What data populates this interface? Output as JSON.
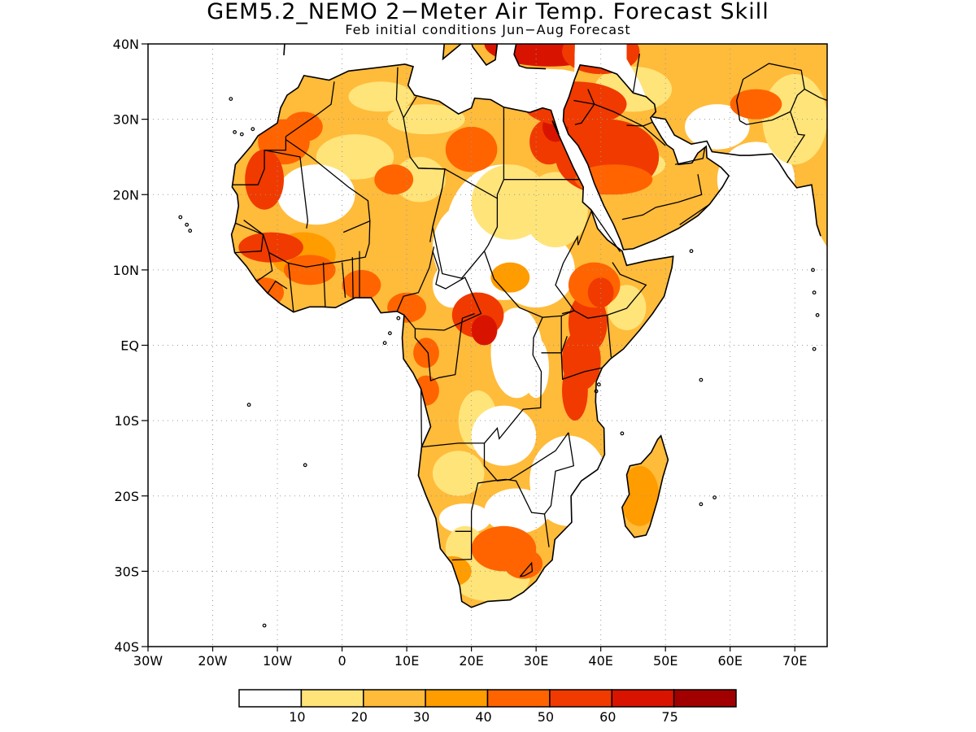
{
  "title": "GEM5.2_NEMO 2−Meter Air Temp. Forecast Skill",
  "subtitle": "Feb initial conditions  Jun−Aug Forecast",
  "map": {
    "lon_range": [
      -30,
      75
    ],
    "lat_range": [
      -40,
      40
    ],
    "lat_ticks": [
      {
        "value": 40,
        "label": "40N"
      },
      {
        "value": 30,
        "label": "30N"
      },
      {
        "value": 20,
        "label": "20N"
      },
      {
        "value": 10,
        "label": "10N"
      },
      {
        "value": 0,
        "label": "EQ"
      },
      {
        "value": -10,
        "label": "10S"
      },
      {
        "value": -20,
        "label": "20S"
      },
      {
        "value": -30,
        "label": "30S"
      },
      {
        "value": -40,
        "label": "40S"
      }
    ],
    "lon_ticks": [
      {
        "value": -30,
        "label": "30W"
      },
      {
        "value": -20,
        "label": "20W"
      },
      {
        "value": -10,
        "label": "10W"
      },
      {
        "value": 0,
        "label": "0"
      },
      {
        "value": 10,
        "label": "10E"
      },
      {
        "value": 20,
        "label": "20E"
      },
      {
        "value": 30,
        "label": "30E"
      },
      {
        "value": 40,
        "label": "40E"
      },
      {
        "value": 50,
        "label": "50E"
      },
      {
        "value": 60,
        "label": "60E"
      },
      {
        "value": 70,
        "label": "70E"
      }
    ],
    "grid": "dotted"
  },
  "colorbar": {
    "colors": [
      "#ffffff",
      "#ffe47a",
      "#ffbb3a",
      "#ff9c00",
      "#ff6400",
      "#f03a00",
      "#d81400",
      "#a20000"
    ],
    "labels": [
      "10",
      "20",
      "30",
      "40",
      "50",
      "60",
      "75"
    ]
  }
}
